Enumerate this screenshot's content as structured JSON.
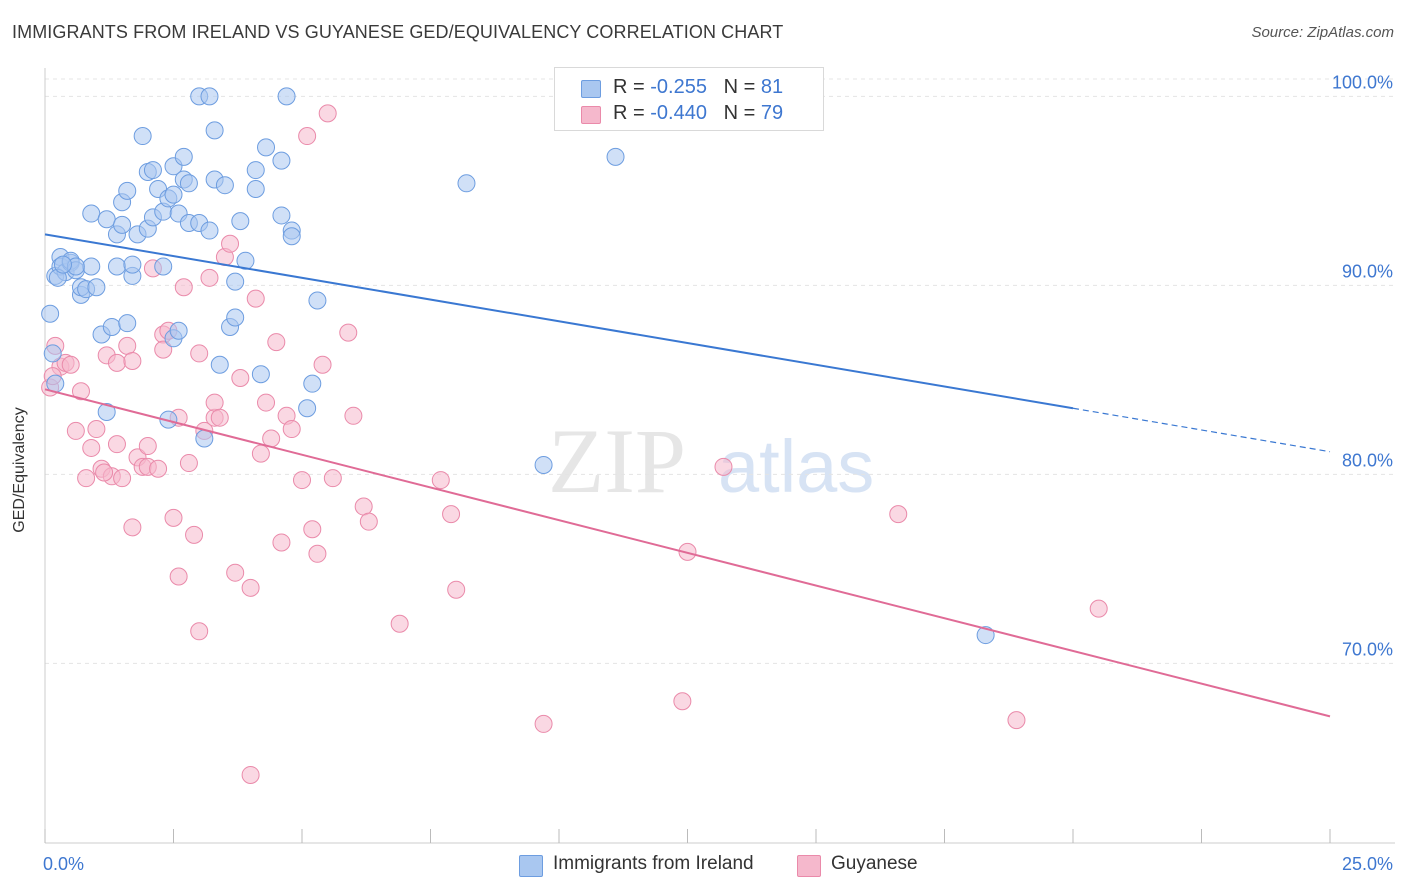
{
  "header": {
    "title": "IMMIGRANTS FROM IRELAND VS GUYANESE GED/EQUIVALENCY CORRELATION CHART",
    "source": "Source: ZipAtlas.com"
  },
  "legend": {
    "rows": [
      {
        "r_label": "R =",
        "r_value": "-0.255",
        "n_label": "N =",
        "n_value": "81"
      },
      {
        "r_label": "R =",
        "r_value": "-0.440",
        "n_label": "N =",
        "n_value": "79"
      }
    ]
  },
  "watermark": {
    "zip": "ZIP",
    "atlas": "atlas"
  },
  "colors": {
    "blue_fill": "#a9c7f0",
    "blue_stroke": "#6d9de0",
    "blue_line": "#3a78d2",
    "pink_fill": "#f5b8cc",
    "pink_stroke": "#ea8aaa",
    "pink_line": "#e06b96",
    "axis_text": "#3e77d0",
    "grid": "#e4e4e4"
  },
  "chart_data": {
    "type": "scatter",
    "title": "IMMIGRANTS FROM IRELAND VS GUYANESE GED/EQUIVALENCY CORRELATION CHART",
    "xlabel": "",
    "ylabel": "GED/Equivalency",
    "xlim": [
      0,
      25
    ],
    "ylim": [
      60.5,
      101.5
    ],
    "x_tick_labels": [
      "0.0%",
      "25.0%"
    ],
    "y_ticks": [
      70,
      80,
      90,
      100
    ],
    "y_tick_labels": [
      "70.0%",
      "80.0%",
      "90.0%",
      "100.0%"
    ],
    "grid": true,
    "legend_position": "top-center",
    "series": [
      {
        "name": "Immigrants from Ireland",
        "r": -0.255,
        "n": 81,
        "trend": {
          "x0": 0.0,
          "y0": 92.7,
          "x1": 20.0,
          "y1": 83.5,
          "dashed_to_x": 25.0,
          "dashed_to_y": 81.2
        },
        "points": [
          [
            0.1,
            88.5
          ],
          [
            0.2,
            90.5
          ],
          [
            0.3,
            91.5
          ],
          [
            0.3,
            91.0
          ],
          [
            0.4,
            90.7
          ],
          [
            0.5,
            91.2
          ],
          [
            0.5,
            91.3
          ],
          [
            0.6,
            90.8
          ],
          [
            0.7,
            89.5
          ],
          [
            0.7,
            89.9
          ],
          [
            0.8,
            89.8
          ],
          [
            0.9,
            91.0
          ],
          [
            0.9,
            93.8
          ],
          [
            1.0,
            89.9
          ],
          [
            1.1,
            87.4
          ],
          [
            1.2,
            93.5
          ],
          [
            1.2,
            83.3
          ],
          [
            1.3,
            87.8
          ],
          [
            1.4,
            92.7
          ],
          [
            1.4,
            91.0
          ],
          [
            1.5,
            94.4
          ],
          [
            1.5,
            93.2
          ],
          [
            1.6,
            95.0
          ],
          [
            1.6,
            88.0
          ],
          [
            1.7,
            90.5
          ],
          [
            1.7,
            91.1
          ],
          [
            1.8,
            92.7
          ],
          [
            1.9,
            97.9
          ],
          [
            2.0,
            93.0
          ],
          [
            2.0,
            96.0
          ],
          [
            2.1,
            93.6
          ],
          [
            2.1,
            96.1
          ],
          [
            2.2,
            95.1
          ],
          [
            2.3,
            93.9
          ],
          [
            2.3,
            91.0
          ],
          [
            2.4,
            94.6
          ],
          [
            2.4,
            82.9
          ],
          [
            2.5,
            87.2
          ],
          [
            2.5,
            94.8
          ],
          [
            2.5,
            96.3
          ],
          [
            2.6,
            93.8
          ],
          [
            2.6,
            87.6
          ],
          [
            2.7,
            96.8
          ],
          [
            2.7,
            95.6
          ],
          [
            2.8,
            93.3
          ],
          [
            2.8,
            95.4
          ],
          [
            3.0,
            93.3
          ],
          [
            3.0,
            100.0
          ],
          [
            3.1,
            81.9
          ],
          [
            3.2,
            100.0
          ],
          [
            3.2,
            92.9
          ],
          [
            3.3,
            98.2
          ],
          [
            3.3,
            95.6
          ],
          [
            3.4,
            85.8
          ],
          [
            3.5,
            95.3
          ],
          [
            3.6,
            87.8
          ],
          [
            3.7,
            88.3
          ],
          [
            3.7,
            90.2
          ],
          [
            3.8,
            93.4
          ],
          [
            3.9,
            91.3
          ],
          [
            4.1,
            96.1
          ],
          [
            4.1,
            95.1
          ],
          [
            4.2,
            85.3
          ],
          [
            4.3,
            97.3
          ],
          [
            4.6,
            96.6
          ],
          [
            4.6,
            93.7
          ],
          [
            4.7,
            100.0
          ],
          [
            4.8,
            92.9
          ],
          [
            4.8,
            92.6
          ],
          [
            5.1,
            83.5
          ],
          [
            5.2,
            84.8
          ],
          [
            5.3,
            89.2
          ],
          [
            8.2,
            95.4
          ],
          [
            9.7,
            80.5
          ],
          [
            11.1,
            96.8
          ],
          [
            18.3,
            71.5
          ],
          [
            0.15,
            86.4
          ],
          [
            0.2,
            84.8
          ],
          [
            0.25,
            90.4
          ],
          [
            0.6,
            91.0
          ],
          [
            0.35,
            91.1
          ]
        ]
      },
      {
        "name": "Guyanese",
        "r": -0.44,
        "n": 79,
        "trend": {
          "x0": 0.0,
          "y0": 84.5,
          "x1": 25.0,
          "y1": 67.2
        },
        "points": [
          [
            0.1,
            84.6
          ],
          [
            0.2,
            86.8
          ],
          [
            0.3,
            85.7
          ],
          [
            0.4,
            85.9
          ],
          [
            0.5,
            85.8
          ],
          [
            0.6,
            82.3
          ],
          [
            0.7,
            84.4
          ],
          [
            0.8,
            79.8
          ],
          [
            0.9,
            81.4
          ],
          [
            1.0,
            82.4
          ],
          [
            1.1,
            80.3
          ],
          [
            1.2,
            86.3
          ],
          [
            1.3,
            79.9
          ],
          [
            1.4,
            81.6
          ],
          [
            1.4,
            85.9
          ],
          [
            1.5,
            79.8
          ],
          [
            1.6,
            86.8
          ],
          [
            1.7,
            86.0
          ],
          [
            1.7,
            77.2
          ],
          [
            1.8,
            80.9
          ],
          [
            1.9,
            80.4
          ],
          [
            2.0,
            81.5
          ],
          [
            2.0,
            80.4
          ],
          [
            2.1,
            90.9
          ],
          [
            2.2,
            80.3
          ],
          [
            2.3,
            87.4
          ],
          [
            2.3,
            86.6
          ],
          [
            2.4,
            87.6
          ],
          [
            2.5,
            77.7
          ],
          [
            2.6,
            74.6
          ],
          [
            2.6,
            83.0
          ],
          [
            2.7,
            89.9
          ],
          [
            2.8,
            80.6
          ],
          [
            2.9,
            76.8
          ],
          [
            3.0,
            71.7
          ],
          [
            3.0,
            86.4
          ],
          [
            3.1,
            82.3
          ],
          [
            3.2,
            90.4
          ],
          [
            3.3,
            83.0
          ],
          [
            3.3,
            83.8
          ],
          [
            3.4,
            83.0
          ],
          [
            3.5,
            91.5
          ],
          [
            3.6,
            92.2
          ],
          [
            3.7,
            74.8
          ],
          [
            3.8,
            85.1
          ],
          [
            4.0,
            74.0
          ],
          [
            4.1,
            89.3
          ],
          [
            4.2,
            81.1
          ],
          [
            4.3,
            83.8
          ],
          [
            4.4,
            81.9
          ],
          [
            4.5,
            87.0
          ],
          [
            4.6,
            76.4
          ],
          [
            4.7,
            83.1
          ],
          [
            4.8,
            82.4
          ],
          [
            5.0,
            79.7
          ],
          [
            5.1,
            97.9
          ],
          [
            5.2,
            77.1
          ],
          [
            5.3,
            75.8
          ],
          [
            5.4,
            85.8
          ],
          [
            5.5,
            99.1
          ],
          [
            5.6,
            79.8
          ],
          [
            5.9,
            87.5
          ],
          [
            6.0,
            83.1
          ],
          [
            6.2,
            78.3
          ],
          [
            6.3,
            77.5
          ],
          [
            6.9,
            72.1
          ],
          [
            7.7,
            79.7
          ],
          [
            7.9,
            77.9
          ],
          [
            8.0,
            73.9
          ],
          [
            9.7,
            66.8
          ],
          [
            12.4,
            68.0
          ],
          [
            12.5,
            75.9
          ],
          [
            13.2,
            80.4
          ],
          [
            16.6,
            77.9
          ],
          [
            18.9,
            67.0
          ],
          [
            20.5,
            72.9
          ],
          [
            4.0,
            64.1
          ],
          [
            0.15,
            85.2
          ],
          [
            1.15,
            80.1
          ]
        ]
      }
    ]
  }
}
